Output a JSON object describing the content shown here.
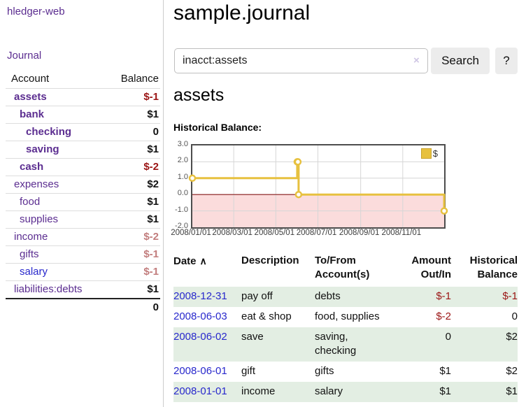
{
  "sidebar": {
    "app_title": "hledger-web",
    "nav": {
      "journal_label": "Journal"
    },
    "accounts_table": {
      "headers": {
        "account": "Account",
        "balance": "Balance"
      },
      "rows": [
        {
          "name": "assets",
          "level": 1,
          "bold": true,
          "balance": "$-1",
          "balance_style": "neg"
        },
        {
          "name": "bank",
          "level": 2,
          "bold": true,
          "balance": "$1",
          "balance_style": "pos"
        },
        {
          "name": "checking",
          "level": 3,
          "bold": true,
          "balance": "0",
          "balance_style": "pos"
        },
        {
          "name": "saving",
          "level": 3,
          "bold": true,
          "balance": "$1",
          "balance_style": "pos"
        },
        {
          "name": "cash",
          "level": 2,
          "bold": true,
          "balance": "$-2",
          "balance_style": "neg"
        },
        {
          "name": "expenses",
          "level": 1,
          "bold": false,
          "balance": "$2",
          "balance_style": "pos"
        },
        {
          "name": "food",
          "level": 2,
          "bold": false,
          "balance": "$1",
          "balance_style": "pos"
        },
        {
          "name": "supplies",
          "level": 2,
          "bold": false,
          "balance": "$1",
          "balance_style": "pos"
        },
        {
          "name": "income",
          "level": 1,
          "bold": false,
          "balance": "$-2",
          "balance_style": "neg-faded"
        },
        {
          "name": "gifts",
          "level": 2,
          "bold": false,
          "balance": "$-1",
          "balance_style": "neg-faded"
        },
        {
          "name": "salary",
          "level": 2,
          "bold": false,
          "link_style": "unvisited",
          "balance": "$-1",
          "balance_style": "neg-faded"
        },
        {
          "name": "liabilities:debts",
          "level": 1,
          "bold": false,
          "balance": "$1",
          "balance_style": "pos"
        }
      ],
      "total": "0"
    }
  },
  "header": {
    "title": "sample.journal"
  },
  "search": {
    "value": "inacct:assets",
    "clear_icon": "×",
    "button_label": "Search",
    "help_label": "?"
  },
  "account_page": {
    "heading": "assets",
    "chart_label": "Historical Balance:"
  },
  "chart_data": {
    "type": "line",
    "step": true,
    "title": "Historical Balance",
    "series": [
      {
        "name": "$",
        "points": [
          [
            "2008-01-01",
            1
          ],
          [
            "2008-06-01",
            2
          ],
          [
            "2008-06-02",
            2
          ],
          [
            "2008-06-03",
            0
          ],
          [
            "2008-12-31",
            -1
          ]
        ]
      }
    ],
    "x_range": [
      "2008-01-01",
      "2008-12-31"
    ],
    "ylim": [
      -2,
      3
    ],
    "y_ticks": [
      "3.0",
      "2.0",
      "1.0",
      "0.0",
      "-1.0",
      "-2.0"
    ],
    "x_ticks": [
      "2008/01/01",
      "2008/03/01",
      "2008/05/01",
      "2008/07/01",
      "2008/09/01",
      "2008/11/01"
    ],
    "legend": {
      "label": "$",
      "position": "top-right"
    },
    "grid": true,
    "negative_region_shaded": true
  },
  "transactions": {
    "headers": {
      "date": "Date",
      "sort_indicator": "∧",
      "description": "Description",
      "accounts": "To/From Account(s)",
      "amount": "Amount Out/In",
      "balance": "Historical Balance"
    },
    "rows": [
      {
        "date": "2008-12-31",
        "description": "pay off",
        "accounts": "debts",
        "amount": "$-1",
        "amount_style": "neg",
        "balance": "$-1",
        "balance_style": "neg"
      },
      {
        "date": "2008-06-03",
        "description": "eat & shop",
        "accounts": "food, supplies",
        "amount": "$-2",
        "amount_style": "neg",
        "balance": "0",
        "balance_style": "pos"
      },
      {
        "date": "2008-06-02",
        "description": "save",
        "accounts": "saving,\nchecking",
        "amount": "0",
        "amount_style": "pos",
        "balance": "$2",
        "balance_style": "pos"
      },
      {
        "date": "2008-06-01",
        "description": "gift",
        "accounts": "gifts",
        "amount": "$1",
        "amount_style": "pos",
        "balance": "$2",
        "balance_style": "pos"
      },
      {
        "date": "2008-01-01",
        "description": "income",
        "accounts": "salary",
        "amount": "$1",
        "amount_style": "pos",
        "balance": "$1",
        "balance_style": "pos"
      }
    ]
  },
  "colors": {
    "link_purple": "#5b2d90",
    "link_blue": "#2828cc",
    "negative_red": "#9b1515",
    "negative_faded": "#c27d7d",
    "row_green": "#e3eee3",
    "chart_line_yellow": "#e7c13f",
    "chart_marker_fill": "#ffffff",
    "chart_fill_pink": "#fbdcdc",
    "chart_zero_line": "#8b1a1a",
    "chart_border": "#4d4d4d",
    "chart_grid": "#d6d6d6"
  }
}
